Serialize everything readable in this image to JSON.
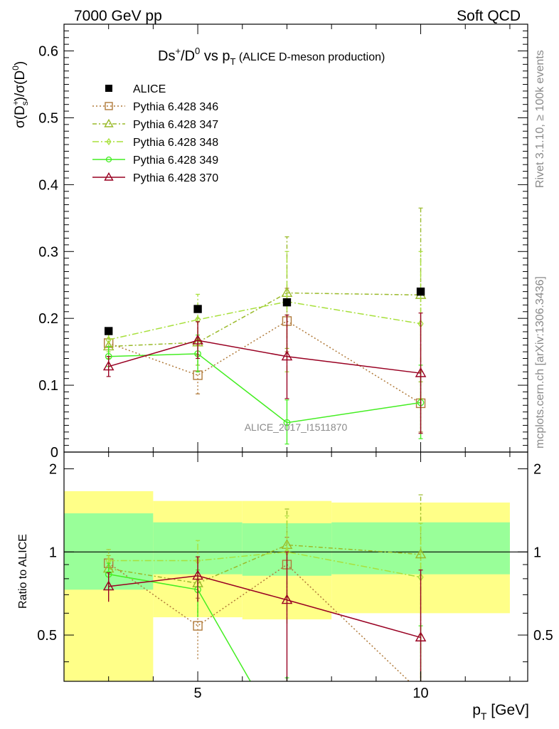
{
  "header": {
    "left": "7000 GeV pp",
    "right": "Soft QCD"
  },
  "side": {
    "rivet": "Rivet 3.1.10, ≥ 100k events",
    "mcplots": "mcplots.cern.ch [arXiv:1306.3436]"
  },
  "chart_data": {
    "type": "line",
    "title_parts": {
      "a": "Ds",
      "a_sup": "+",
      "b": "/D",
      "b_sup": "0",
      "c": " vs p",
      "c_sub": "T",
      "d": " (ALICE D-meson production)"
    },
    "ylabel_parts": {
      "a": "σ(D",
      "a_sup": "+",
      "a_sub": "s",
      "b": ")/σ(D",
      "b_sup": "0",
      "c": ")"
    },
    "ratio_ylabel": "Ratio to ALICE",
    "xlabel_parts": {
      "a": "p",
      "a_sub": "T",
      "b": " [GeV]"
    },
    "watermark": "ALICE_2017_I1511870",
    "xlim": [
      2,
      12.4
    ],
    "ylim": [
      0,
      0.64
    ],
    "ratio_ylim": [
      0.34,
      2.3
    ],
    "x_ticks": [
      5,
      10
    ],
    "y_ticks": [
      "0",
      "0.1",
      "0.2",
      "0.3",
      "0.4",
      "0.5",
      "0.6"
    ],
    "ratio_y_ticks": [
      "0.5",
      "1",
      "2"
    ],
    "x": [
      3,
      5,
      7,
      10
    ],
    "x_bins": [
      [
        2,
        4
      ],
      [
        4,
        6
      ],
      [
        6,
        8
      ],
      [
        8,
        12
      ]
    ],
    "data": {
      "name": "ALICE",
      "values": [
        0.181,
        0.214,
        0.224,
        0.24
      ],
      "ratio_band_inner": [
        [
          0.73,
          1.38
        ],
        [
          0.83,
          1.28
        ],
        [
          0.82,
          1.27
        ],
        [
          0.83,
          1.28
        ]
      ],
      "ratio_band_outer": [
        [
          0.34,
          1.66
        ],
        [
          0.58,
          1.53
        ],
        [
          0.57,
          1.53
        ],
        [
          0.6,
          1.51
        ]
      ]
    },
    "series": [
      {
        "name": "Pythia 6.428 346",
        "color": "#b07a3a",
        "marker": "square",
        "dash": "2,3",
        "values": [
          0.163,
          0.115,
          0.196,
          0.073
        ],
        "err": [
          [
            0.143,
            0.183
          ],
          [
            0.087,
            0.145
          ],
          [
            0.15,
            0.245
          ],
          [
            0.03,
            0.12
          ]
        ],
        "ratio": [
          0.91,
          0.54,
          0.9,
          0.31
        ],
        "ratio_err": [
          [
            0.8,
            1.02
          ],
          [
            0.41,
            0.68
          ],
          [
            0.68,
            1.13
          ],
          [
            0.13,
            0.5
          ]
        ]
      },
      {
        "name": "Pythia 6.428 347",
        "color": "#9aba2a",
        "marker": "triangle",
        "dash": "6,3,2,3",
        "values": [
          0.158,
          0.164,
          0.238,
          0.235
        ],
        "err": [
          [
            0.14,
            0.176
          ],
          [
            0.13,
            0.2
          ],
          [
            0.155,
            0.322
          ],
          [
            0.105,
            0.365
          ]
        ],
        "ratio": [
          0.87,
          0.77,
          1.06,
          0.98
        ],
        "ratio_err": [
          [
            0.77,
            0.97
          ],
          [
            0.6,
            0.93
          ],
          [
            0.7,
            1.43
          ],
          [
            0.44,
            1.61
          ]
        ]
      },
      {
        "name": "Pythia 6.428 348",
        "color": "#a8e03c",
        "marker": "diamond",
        "dash": "9,3,2,3",
        "values": [
          0.168,
          0.198,
          0.225,
          0.192
        ],
        "err": [
          [
            0.15,
            0.186
          ],
          [
            0.16,
            0.236
          ],
          [
            0.12,
            0.3
          ],
          [
            0.08,
            0.3
          ]
        ],
        "ratio": [
          0.93,
          0.93,
          1.0,
          0.81
        ],
        "ratio_err": [
          [
            0.83,
            1.02
          ],
          [
            0.75,
            1.1
          ],
          [
            0.55,
            1.35
          ],
          [
            0.35,
            1.27
          ]
        ]
      },
      {
        "name": "Pythia 6.428 349",
        "color": "#44ee22",
        "marker": "circle",
        "dash": "",
        "values": [
          0.143,
          0.147,
          0.044,
          0.074
        ],
        "err": [
          [
            0.128,
            0.158
          ],
          [
            0.12,
            0.175
          ],
          [
            0.012,
            0.078
          ],
          [
            0.02,
            0.13
          ]
        ],
        "ratio": [
          0.83,
          0.73,
          0.2,
          0.31
        ],
        "ratio_err": [
          [
            0.74,
            0.91
          ],
          [
            0.58,
            0.86
          ],
          [
            0.05,
            0.35
          ],
          [
            0.08,
            0.54
          ]
        ]
      },
      {
        "name": "Pythia 6.428 370",
        "color": "#990022",
        "marker": "triangle",
        "dash": "",
        "values": [
          0.128,
          0.167,
          0.143,
          0.118
        ],
        "err": [
          [
            0.113,
            0.143
          ],
          [
            0.14,
            0.195
          ],
          [
            0.08,
            0.205
          ],
          [
            0.028,
            0.208
          ]
        ],
        "ratio": [
          0.75,
          0.82,
          0.67,
          0.49
        ],
        "ratio_err": [
          [
            0.66,
            0.84
          ],
          [
            0.66,
            0.96
          ],
          [
            0.33,
            1.0
          ],
          [
            0.12,
            0.86
          ]
        ]
      }
    ]
  }
}
